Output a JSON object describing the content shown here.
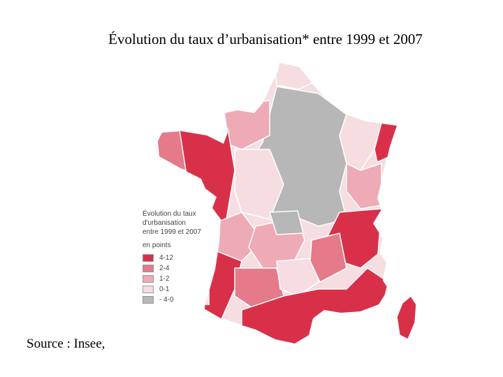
{
  "title": "Évolution du taux d’urbanisation* entre 1999 et 2007",
  "source": "Source : Insee,",
  "legend": {
    "title_lines": [
      "Évolution du taux",
      "d'urbanisation",
      "entre 1999 et 2007"
    ],
    "unit": "en points",
    "classes": [
      {
        "label": "4-12",
        "color": "#d9304a"
      },
      {
        "label": "2-4",
        "color": "#e47a8a"
      },
      {
        "label": "1-2",
        "color": "#eeaab5"
      },
      {
        "label": "0-1",
        "color": "#f6dde2"
      },
      {
        "label": "- 4-0",
        "color": "#b7b7b7"
      }
    ]
  }
}
